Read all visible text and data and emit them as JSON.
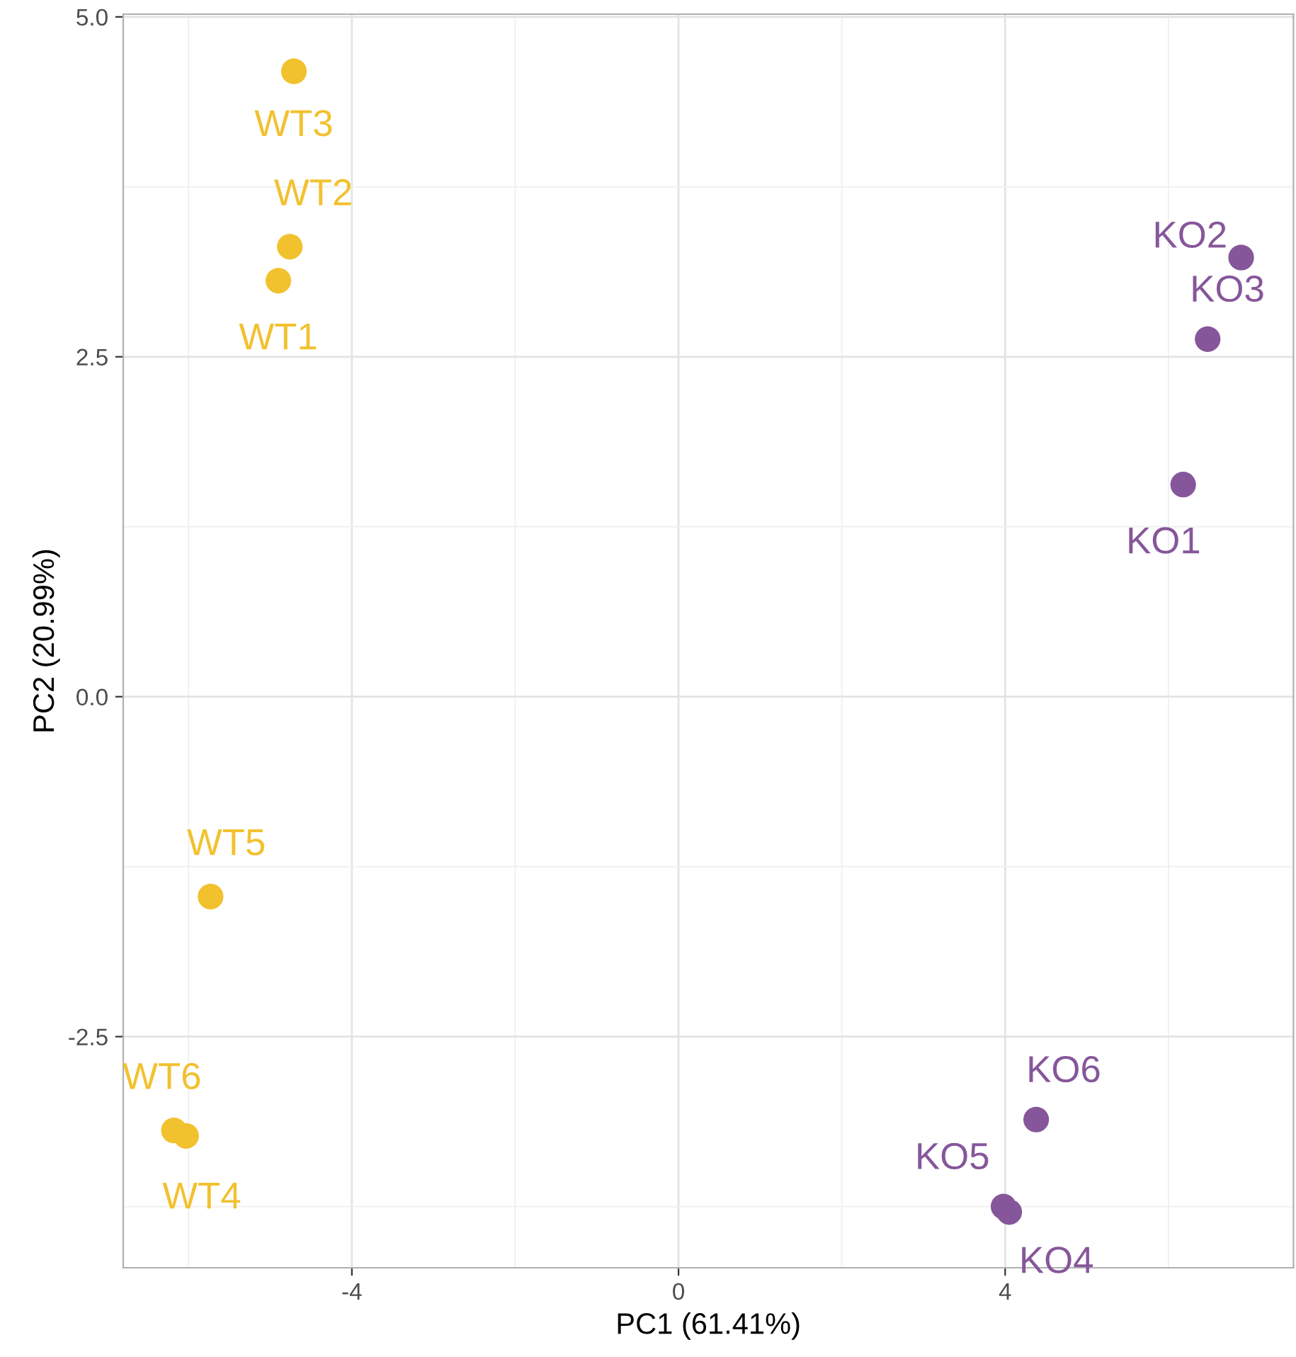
{
  "chart_data": {
    "type": "scatter",
    "xlabel": "PC1 (61.41%)",
    "ylabel": "PC2 (20.99%)",
    "xlim": [
      -6.8,
      7.53
    ],
    "ylim": [
      -4.2,
      5.02
    ],
    "xticks": [
      {
        "value": -4,
        "label": "-4"
      },
      {
        "value": 0,
        "label": "0"
      },
      {
        "value": 4,
        "label": "4"
      }
    ],
    "yticks": [
      {
        "value": -2.5,
        "label": "-2.5"
      },
      {
        "value": 0,
        "label": "0.0"
      },
      {
        "value": 2.5,
        "label": "2.5"
      },
      {
        "value": 5,
        "label": "5.0"
      }
    ],
    "grid": true,
    "marker": "circle",
    "series": [
      {
        "color": "#f2c12e",
        "x": [
          -4.71,
          -4.76,
          -4.9,
          -5.73,
          -6.18,
          -6.03
        ],
        "values": [
          4.6,
          3.31,
          3.06,
          -1.47,
          -3.19,
          -3.23
        ]
      },
      {
        "color": "#86569a",
        "x": [
          6.89,
          6.48,
          6.18,
          4.38,
          3.98,
          4.05
        ],
        "values": [
          3.23,
          2.63,
          1.56,
          -3.11,
          -3.75,
          -3.79
        ]
      }
    ],
    "annotations": [
      {
        "text": "WT3",
        "x": -4.71,
        "y": 4.6
      },
      {
        "text": "WT2",
        "x": -4.76,
        "y": 3.31
      },
      {
        "text": "WT1",
        "x": -4.9,
        "y": 3.06
      },
      {
        "text": "WT5",
        "x": -5.73,
        "y": -1.47
      },
      {
        "text": "WT6",
        "x": -6.18,
        "y": -3.19
      },
      {
        "text": "WT4",
        "x": -6.03,
        "y": -3.23
      },
      {
        "text": "KO2",
        "x": 6.89,
        "y": 3.23
      },
      {
        "text": "KO3",
        "x": 6.48,
        "y": 2.63
      },
      {
        "text": "KO1",
        "x": 6.18,
        "y": 1.56
      },
      {
        "text": "KO6",
        "x": 4.38,
        "y": -3.11
      },
      {
        "text": "KO5",
        "x": 3.98,
        "y": -3.75
      },
      {
        "text": "KO4",
        "x": 4.05,
        "y": -3.79
      }
    ]
  }
}
